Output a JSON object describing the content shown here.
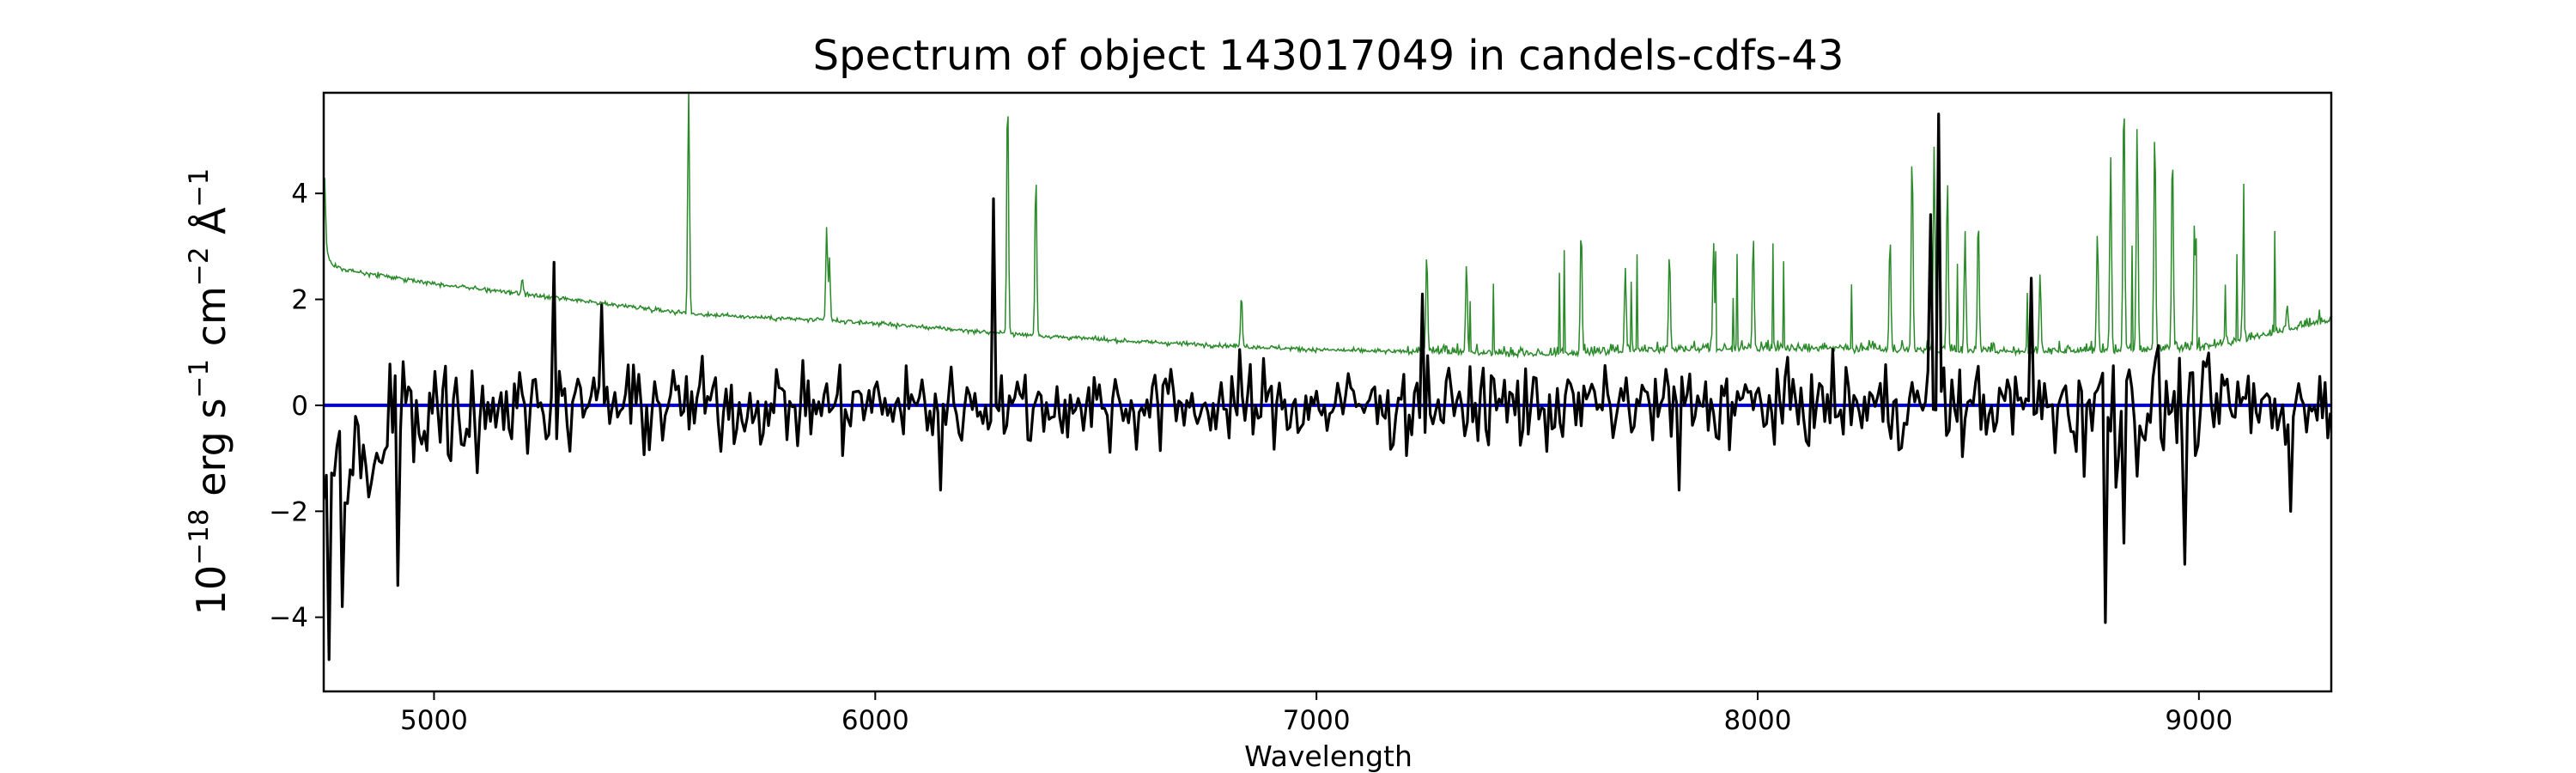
{
  "chart_data": {
    "type": "line",
    "title": "Spectrum of object 143017049 in candels-cdfs-43",
    "xlabel": "Wavelength",
    "ylabel": {
      "base": "10",
      "exp_power": "−18",
      "unit_a": " erg s",
      "exp_a": "−1",
      "unit_b": " cm",
      "exp_b": "−2",
      "unit_c": " Å",
      "exp_c": "−1"
    },
    "xlim": [
      4750,
      9300
    ],
    "ylim": [
      -5.4,
      5.9
    ],
    "x_ticks": [
      5000,
      6000,
      7000,
      8000,
      9000
    ],
    "y_ticks": [
      -4,
      -2,
      0,
      2,
      4
    ],
    "x_tick_labels": [
      "5000",
      "6000",
      "7000",
      "8000",
      "9000"
    ],
    "y_tick_labels": [
      "−4",
      "−2",
      "0",
      "2",
      "4"
    ],
    "grid": false,
    "series": [
      {
        "color": "#2a8a2a",
        "role": "error spectrum",
        "continuum": [
          [
            4750,
            3.0
          ],
          [
            4770,
            2.65
          ],
          [
            4800,
            2.55
          ],
          [
            5000,
            2.3
          ],
          [
            5300,
            2.0
          ],
          [
            5600,
            1.72
          ],
          [
            6000,
            1.55
          ],
          [
            6300,
            1.35
          ],
          [
            6600,
            1.2
          ],
          [
            7000,
            1.05
          ],
          [
            7500,
            0.95
          ],
          [
            7800,
            1.05
          ],
          [
            8200,
            1.05
          ],
          [
            8600,
            1.0
          ],
          [
            9000,
            1.05
          ],
          [
            9300,
            1.6
          ]
        ],
        "peaks": [
          [
            4752,
            4.3
          ],
          [
            5200,
            2.4
          ],
          [
            5577,
            6.0
          ],
          [
            5890,
            3.4
          ],
          [
            5896,
            2.8
          ],
          [
            6300,
            6.0
          ],
          [
            6364,
            4.4
          ],
          [
            6830,
            2.1
          ],
          [
            7250,
            2.9
          ],
          [
            7340,
            2.7
          ],
          [
            7600,
            3.4
          ],
          [
            7700,
            2.6
          ],
          [
            7800,
            2.9
          ],
          [
            7900,
            3.1
          ],
          [
            7990,
            3.2
          ],
          [
            8300,
            3.2
          ],
          [
            8350,
            4.8
          ],
          [
            8400,
            4.9
          ],
          [
            8430,
            4.3
          ],
          [
            8470,
            3.3
          ],
          [
            8500,
            3.6
          ],
          [
            8640,
            2.5
          ],
          [
            8770,
            3.3
          ],
          [
            8800,
            4.7
          ],
          [
            8830,
            6.0
          ],
          [
            8860,
            5.3
          ],
          [
            8900,
            5.3
          ],
          [
            8940,
            4.9
          ],
          [
            8990,
            3.5
          ],
          [
            9100,
            2.5
          ],
          [
            9200,
            1.9
          ]
        ]
      },
      {
        "color": "#000000",
        "role": "flux",
        "spikes": [
          [
            4760,
            -4.8
          ],
          [
            4790,
            -3.8
          ],
          [
            4920,
            -3.4
          ],
          [
            5270,
            2.7
          ],
          [
            5380,
            1.9
          ],
          [
            6270,
            3.9
          ],
          [
            6150,
            -1.6
          ],
          [
            7240,
            2.1
          ],
          [
            7820,
            -1.6
          ],
          [
            8410,
            5.5
          ],
          [
            8390,
            3.6
          ],
          [
            8620,
            2.4
          ],
          [
            8790,
            -4.1
          ],
          [
            8830,
            -2.6
          ],
          [
            8970,
            -3.0
          ],
          [
            9210,
            -2.0
          ]
        ]
      },
      {
        "color": "#0000cc",
        "role": "model",
        "values": [
          [
            4750,
            0.0
          ],
          [
            9300,
            0.0
          ]
        ]
      }
    ]
  }
}
